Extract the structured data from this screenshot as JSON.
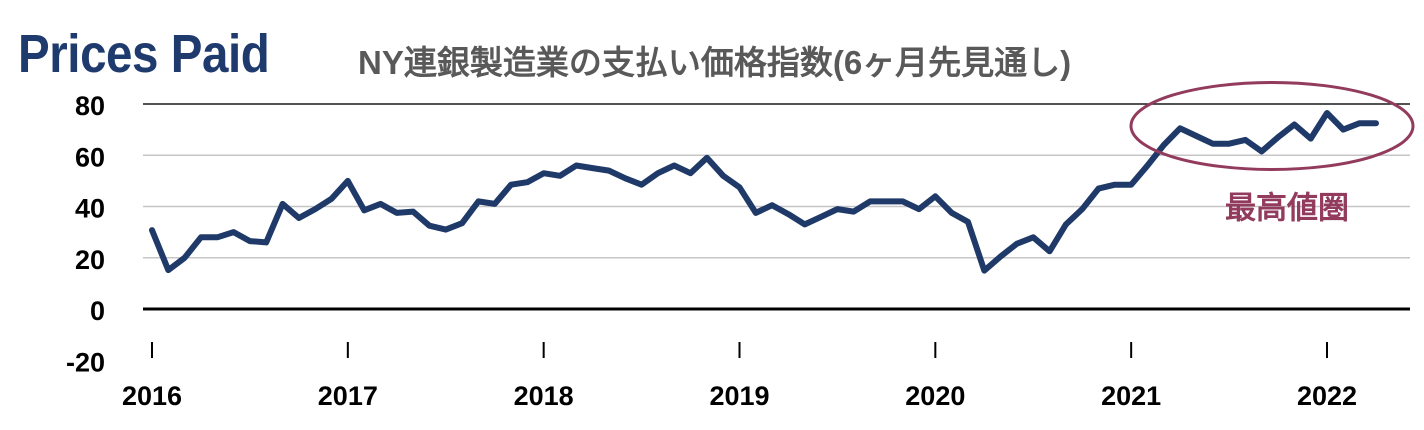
{
  "chart_data": {
    "type": "line",
    "title": "Prices Paid",
    "subtitle": "NY連銀製造業の支払い価格指数(6ヶ月先見通し)",
    "x": [
      "2016-01",
      "2016-02",
      "2016-03",
      "2016-04",
      "2016-05",
      "2016-06",
      "2016-07",
      "2016-08",
      "2016-09",
      "2016-10",
      "2016-11",
      "2016-12",
      "2017-01",
      "2017-02",
      "2017-03",
      "2017-04",
      "2017-05",
      "2017-06",
      "2017-07",
      "2017-08",
      "2017-09",
      "2017-10",
      "2017-11",
      "2017-12",
      "2018-01",
      "2018-02",
      "2018-03",
      "2018-04",
      "2018-05",
      "2018-06",
      "2018-07",
      "2018-08",
      "2018-09",
      "2018-10",
      "2018-11",
      "2018-12",
      "2019-01",
      "2019-02",
      "2019-03",
      "2019-04",
      "2019-05",
      "2019-06",
      "2019-07",
      "2019-08",
      "2019-09",
      "2019-10",
      "2019-11",
      "2019-12",
      "2020-01",
      "2020-02",
      "2020-03",
      "2020-04",
      "2020-05",
      "2020-06",
      "2020-07",
      "2020-08",
      "2020-09",
      "2020-10",
      "2020-11",
      "2020-12",
      "2021-01",
      "2021-02",
      "2021-03",
      "2021-04",
      "2021-05",
      "2021-06",
      "2021-07",
      "2021-08",
      "2021-09",
      "2021-10",
      "2021-11",
      "2021-12",
      "2022-01",
      "2022-02",
      "2022-03",
      "2022-04"
    ],
    "values": [
      30.8,
      15.2,
      20.0,
      28.0,
      28.0,
      30.0,
      26.5,
      26.0,
      41.0,
      35.5,
      39.0,
      43.0,
      50.0,
      38.5,
      41.0,
      37.5,
      38.0,
      32.5,
      31.0,
      33.5,
      42.0,
      41.0,
      48.5,
      49.5,
      53.0,
      52.0,
      56.0,
      55.0,
      54.0,
      51.0,
      48.5,
      53.0,
      56.0,
      53.0,
      59.0,
      52.0,
      47.5,
      37.5,
      40.5,
      37.0,
      33.0,
      36.0,
      39.0,
      38.0,
      42.0,
      42.0,
      42.0,
      39.0,
      44.0,
      37.5,
      34.0,
      15.0,
      20.5,
      25.5,
      28.0,
      22.5,
      33.0,
      39.0,
      47.0,
      48.5,
      48.5,
      56.0,
      64.0,
      70.5,
      67.5,
      64.5,
      64.5,
      66.0,
      61.5,
      67.0,
      72.0,
      66.5,
      76.5,
      70.0,
      72.5,
      72.5
    ],
    "xticks": [
      "2016",
      "2017",
      "2018",
      "2019",
      "2020",
      "2021",
      "2022"
    ],
    "yticks": [
      80,
      60,
      40,
      20,
      0,
      -20
    ],
    "ylim": [
      -20,
      80
    ],
    "grid": true,
    "annotations": [
      {
        "text": "最高値圏"
      }
    ]
  },
  "colors": {
    "title": "#1f3b6e",
    "subtitle": "#595959",
    "line": "#1f3a68",
    "annotation": "#923b5c",
    "axis": "#000000",
    "grid": "#c6c6c6"
  }
}
